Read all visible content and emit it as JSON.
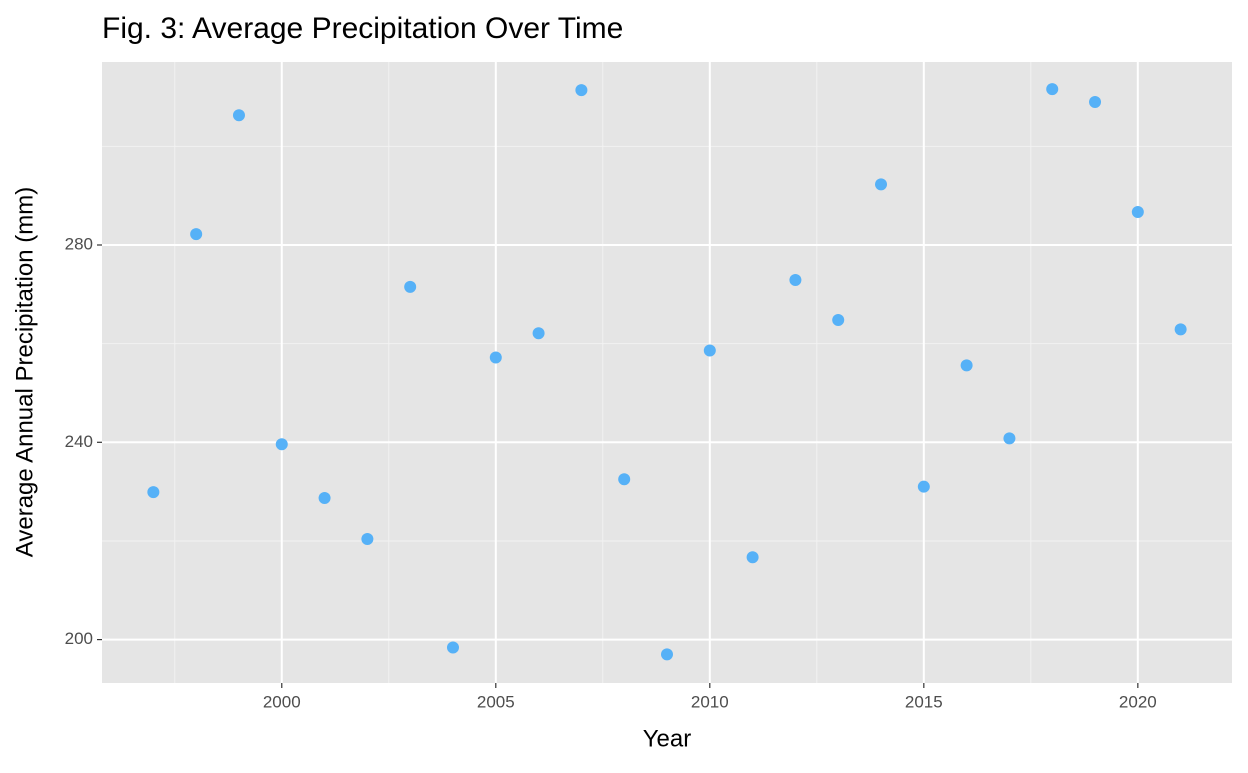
{
  "chart_data": {
    "type": "scatter",
    "title": "Fig. 3: Average Precipitation Over Time",
    "x_label": "Year",
    "y_label": "Average Annual Precipitation (mm)",
    "x": [
      1997,
      1998,
      1999,
      2000,
      2001,
      2002,
      2003,
      2004,
      2005,
      2006,
      2007,
      2008,
      2009,
      2010,
      2011,
      2012,
      2013,
      2014,
      2015,
      2016,
      2017,
      2018,
      2019,
      2020,
      2021
    ],
    "values": [
      229.9,
      282.2,
      306.3,
      239.6,
      228.7,
      220.4,
      271.5,
      198.4,
      257.2,
      262.1,
      311.4,
      232.5,
      197.0,
      258.6,
      216.7,
      272.9,
      264.8,
      292.3,
      231.0,
      255.6,
      240.8,
      311.6,
      309.0,
      286.7,
      262.9
    ],
    "color": "#56b1f7",
    "xlim": [
      1995.8,
      2022.2
    ],
    "xticks": [
      2000,
      2005,
      2010,
      2015,
      2020
    ],
    "ylim": [
      191.2,
      317.1
    ],
    "yticks": [
      200,
      240,
      280
    ],
    "grid": true
  }
}
